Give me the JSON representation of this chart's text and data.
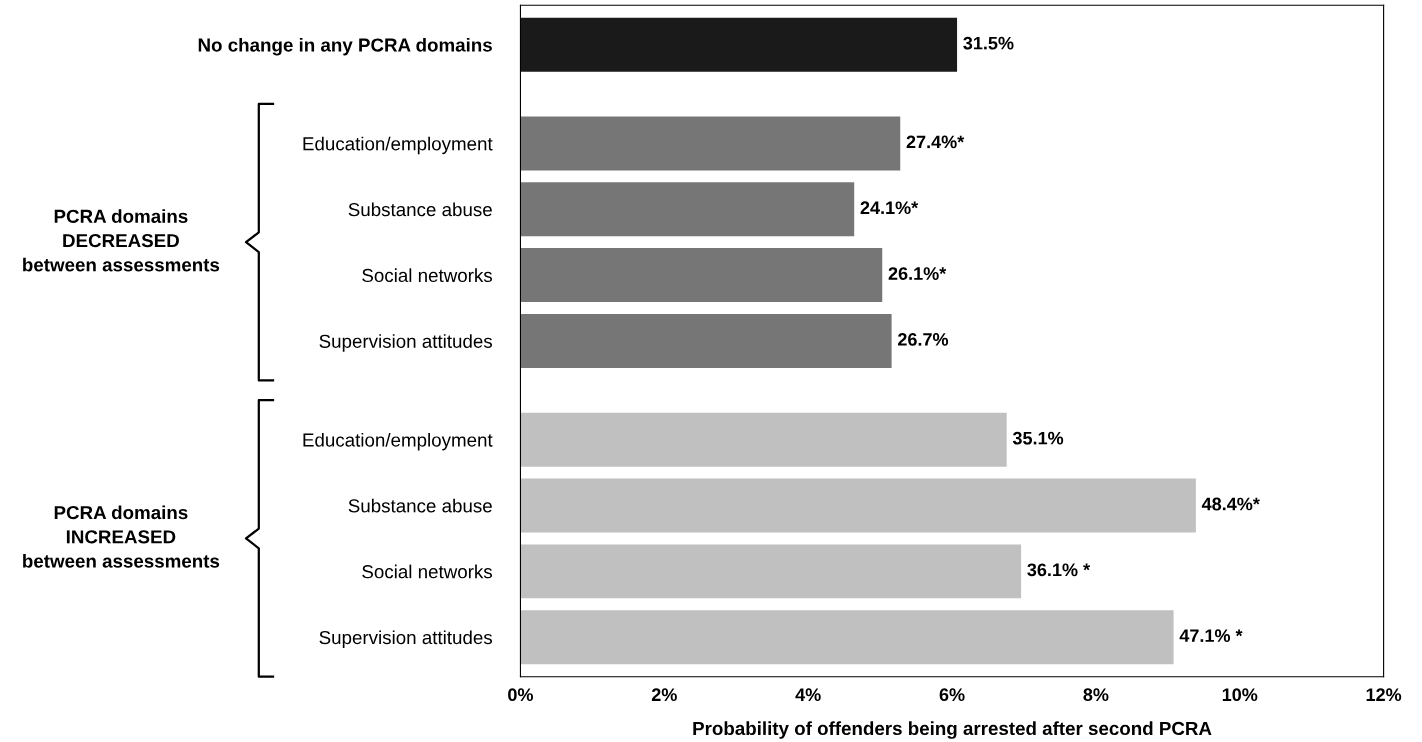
{
  "chart_data": {
    "type": "bar",
    "orientation": "horizontal",
    "xlabel": "Probability of offenders being arrested after second PCRA",
    "categories": [
      "No change in any PCRA domains",
      null,
      "Education/employment",
      "Substance abuse",
      "Social networks",
      "Supervision attitudes",
      null,
      "Education/employment",
      "Substance abuse",
      "Social networks",
      "Supervision attitudes"
    ],
    "values": [
      6.07,
      null,
      5.28,
      4.64,
      5.03,
      5.16,
      null,
      6.76,
      9.39,
      6.96,
      9.08
    ],
    "colors": [
      "#1a1a1a",
      null,
      "#767676",
      "#767676",
      "#767676",
      "#767676",
      null,
      "#c0c0c0",
      "#c0c0c0",
      "#c0c0c0",
      "#c0c0c0"
    ],
    "xlim": [
      0,
      12
    ],
    "xticks": [
      {
        "value": 0,
        "label": "0%"
      },
      {
        "value": 2,
        "label": "2%"
      },
      {
        "value": 4,
        "label": "4%"
      },
      {
        "value": 6,
        "label": "6%"
      },
      {
        "value": 8,
        "label": "8%"
      },
      {
        "value": 10,
        "label": "10%"
      },
      {
        "value": 12,
        "label": "12%"
      }
    ],
    "annotations": [
      "PCRA domains\nDECREASED\nbetween assessments",
      "PCRA domains\nINCREASED\nbetween assessments",
      "31.5%",
      "27.4%*",
      "24.1%*",
      "26.1%*",
      "26.7%",
      "35.1%",
      "48.4%*",
      "36.1% *",
      "47.1% *"
    ],
    "grid": false
  }
}
